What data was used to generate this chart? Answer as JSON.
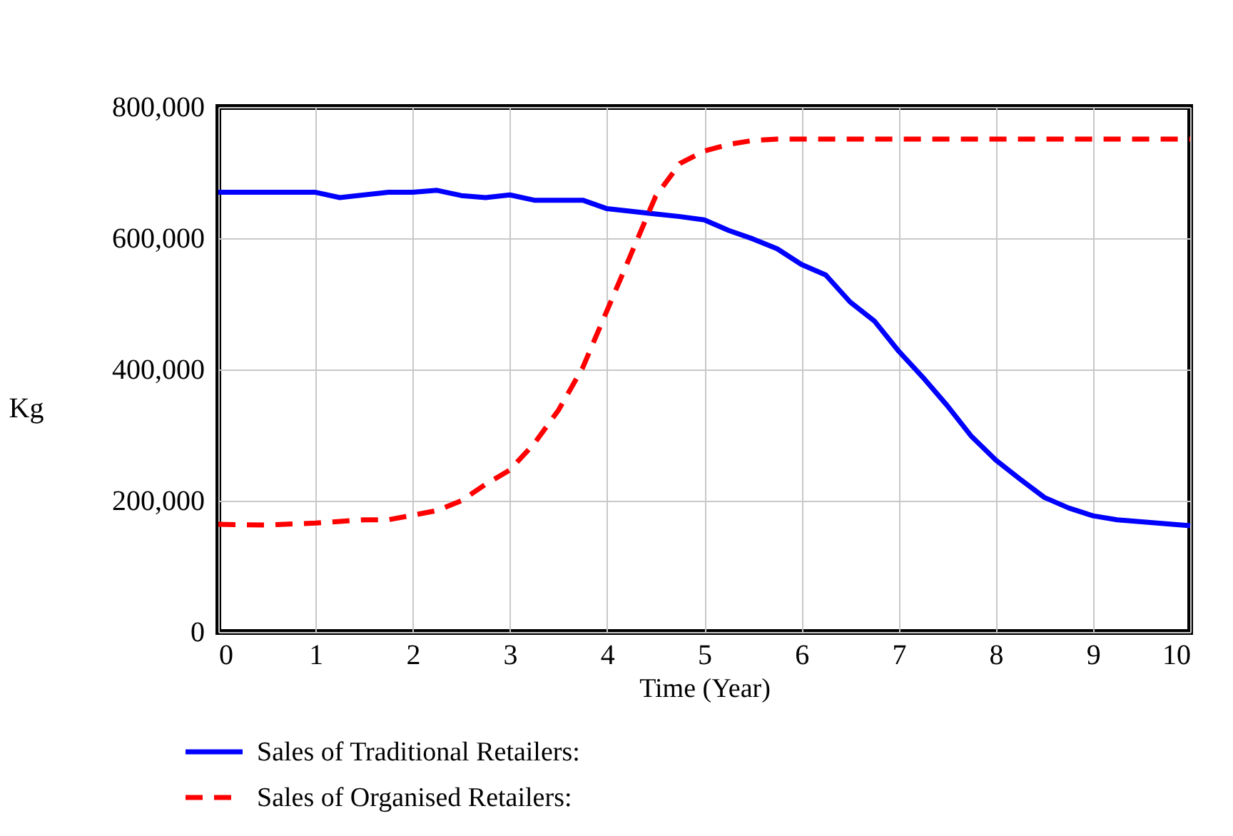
{
  "chart_data": {
    "type": "line",
    "xlabel": "Time (Year)",
    "ylabel": "Kg",
    "xlim": [
      0,
      10
    ],
    "xticks": [
      0,
      1,
      2,
      3,
      4,
      5,
      6,
      7,
      8,
      9,
      10
    ],
    "ylim": [
      0,
      800000
    ],
    "yticks": [
      0,
      {
        "value": 200000,
        "label": "200,000"
      },
      {
        "value": 400000,
        "label": "400,000"
      },
      {
        "value": 600000,
        "label": "600,000"
      },
      {
        "value": 800000,
        "label": "800,000"
      }
    ],
    "grid": true,
    "legend": "bottom",
    "series": [
      {
        "name": "Sales of Traditional Retailers:",
        "color": "#0000ff",
        "line_style": "solid",
        "x": [
          0,
          1,
          1.25,
          1.75,
          2,
          2.25,
          2.5,
          2.75,
          3,
          3.25,
          3.75,
          4,
          4.5,
          4.75,
          5,
          5.25,
          5.5,
          5.75,
          6,
          6.25,
          6.5,
          6.75,
          7,
          7.25,
          7.5,
          7.75,
          8,
          8.25,
          8.5,
          8.75,
          9,
          9.25,
          10
        ],
        "values": [
          670000,
          670000,
          662000,
          670000,
          670000,
          673000,
          665000,
          662000,
          666000,
          658000,
          658000,
          645000,
          637000,
          633000,
          628000,
          612000,
          599000,
          584000,
          560000,
          544000,
          503000,
          474000,
          428000,
          388000,
          345000,
          298000,
          262000,
          233000,
          205000,
          189000,
          177000,
          171000,
          162000
        ]
      },
      {
        "name": "Sales of Organised Retailers:",
        "color": "#ff0000",
        "line_style": "dashed",
        "x": [
          0,
          0.5,
          1,
          1.5,
          1.75,
          2,
          2.25,
          2.5,
          2.75,
          3,
          3.25,
          3.5,
          3.75,
          4,
          4.25,
          4.5,
          4.75,
          5,
          5.25,
          5.5,
          5.75,
          10
        ],
        "values": [
          164000,
          163000,
          166000,
          171000,
          171000,
          178000,
          185000,
          200000,
          225000,
          247000,
          287000,
          338000,
          403000,
          490000,
          577000,
          664000,
          714000,
          733000,
          743000,
          749000,
          751000,
          751000
        ]
      }
    ]
  }
}
